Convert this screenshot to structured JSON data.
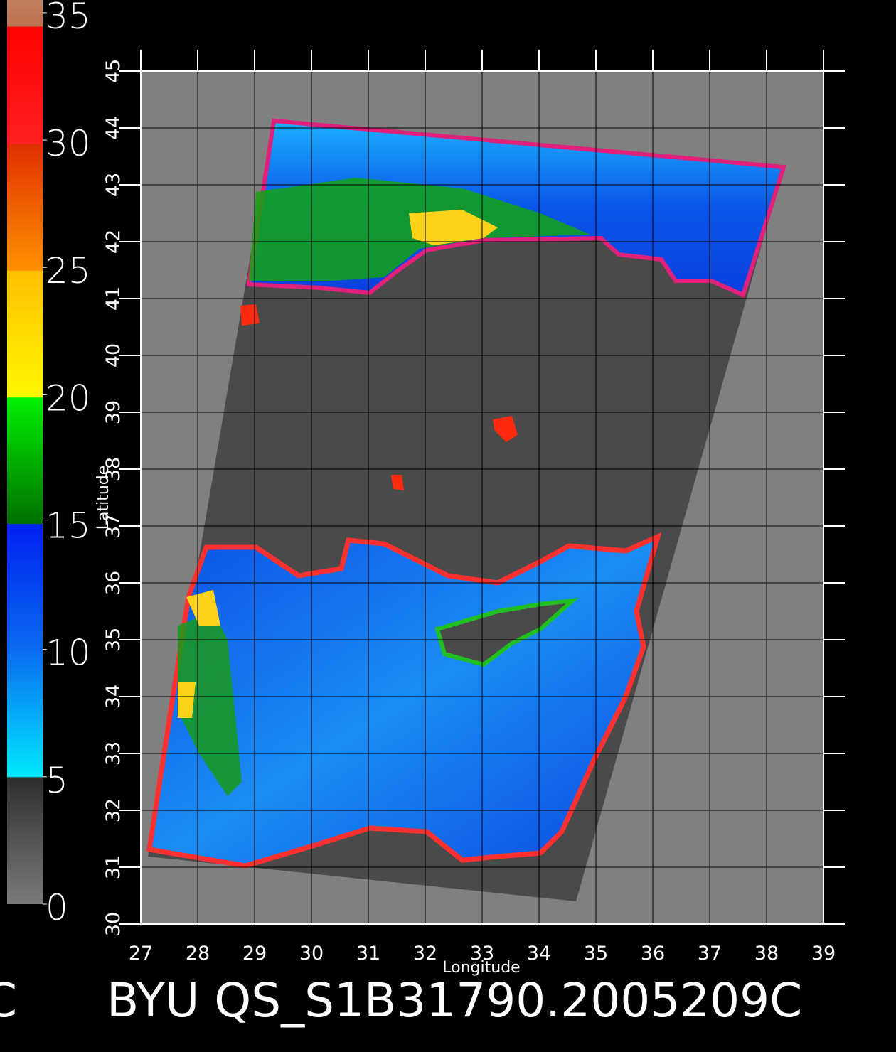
{
  "colorbar": {
    "lim": [
      0,
      35.5
    ],
    "ticks": [
      0,
      5,
      10,
      15,
      20,
      25,
      30,
      35
    ]
  },
  "map": {
    "xlabel": "Longitude",
    "ylabel": "Latitude",
    "xlim": [
      27,
      39
    ],
    "ylim": [
      30,
      45
    ],
    "xticks": [
      27,
      28,
      29,
      30,
      31,
      32,
      33,
      34,
      35,
      36,
      37,
      38,
      39
    ],
    "yticks": [
      30,
      31,
      32,
      33,
      34,
      35,
      36,
      37,
      38,
      39,
      40,
      41,
      42,
      43,
      44,
      45
    ],
    "grid": true
  },
  "footer": {
    "left": "C",
    "title": "BYU QS_S1B31790.2005209C"
  }
}
